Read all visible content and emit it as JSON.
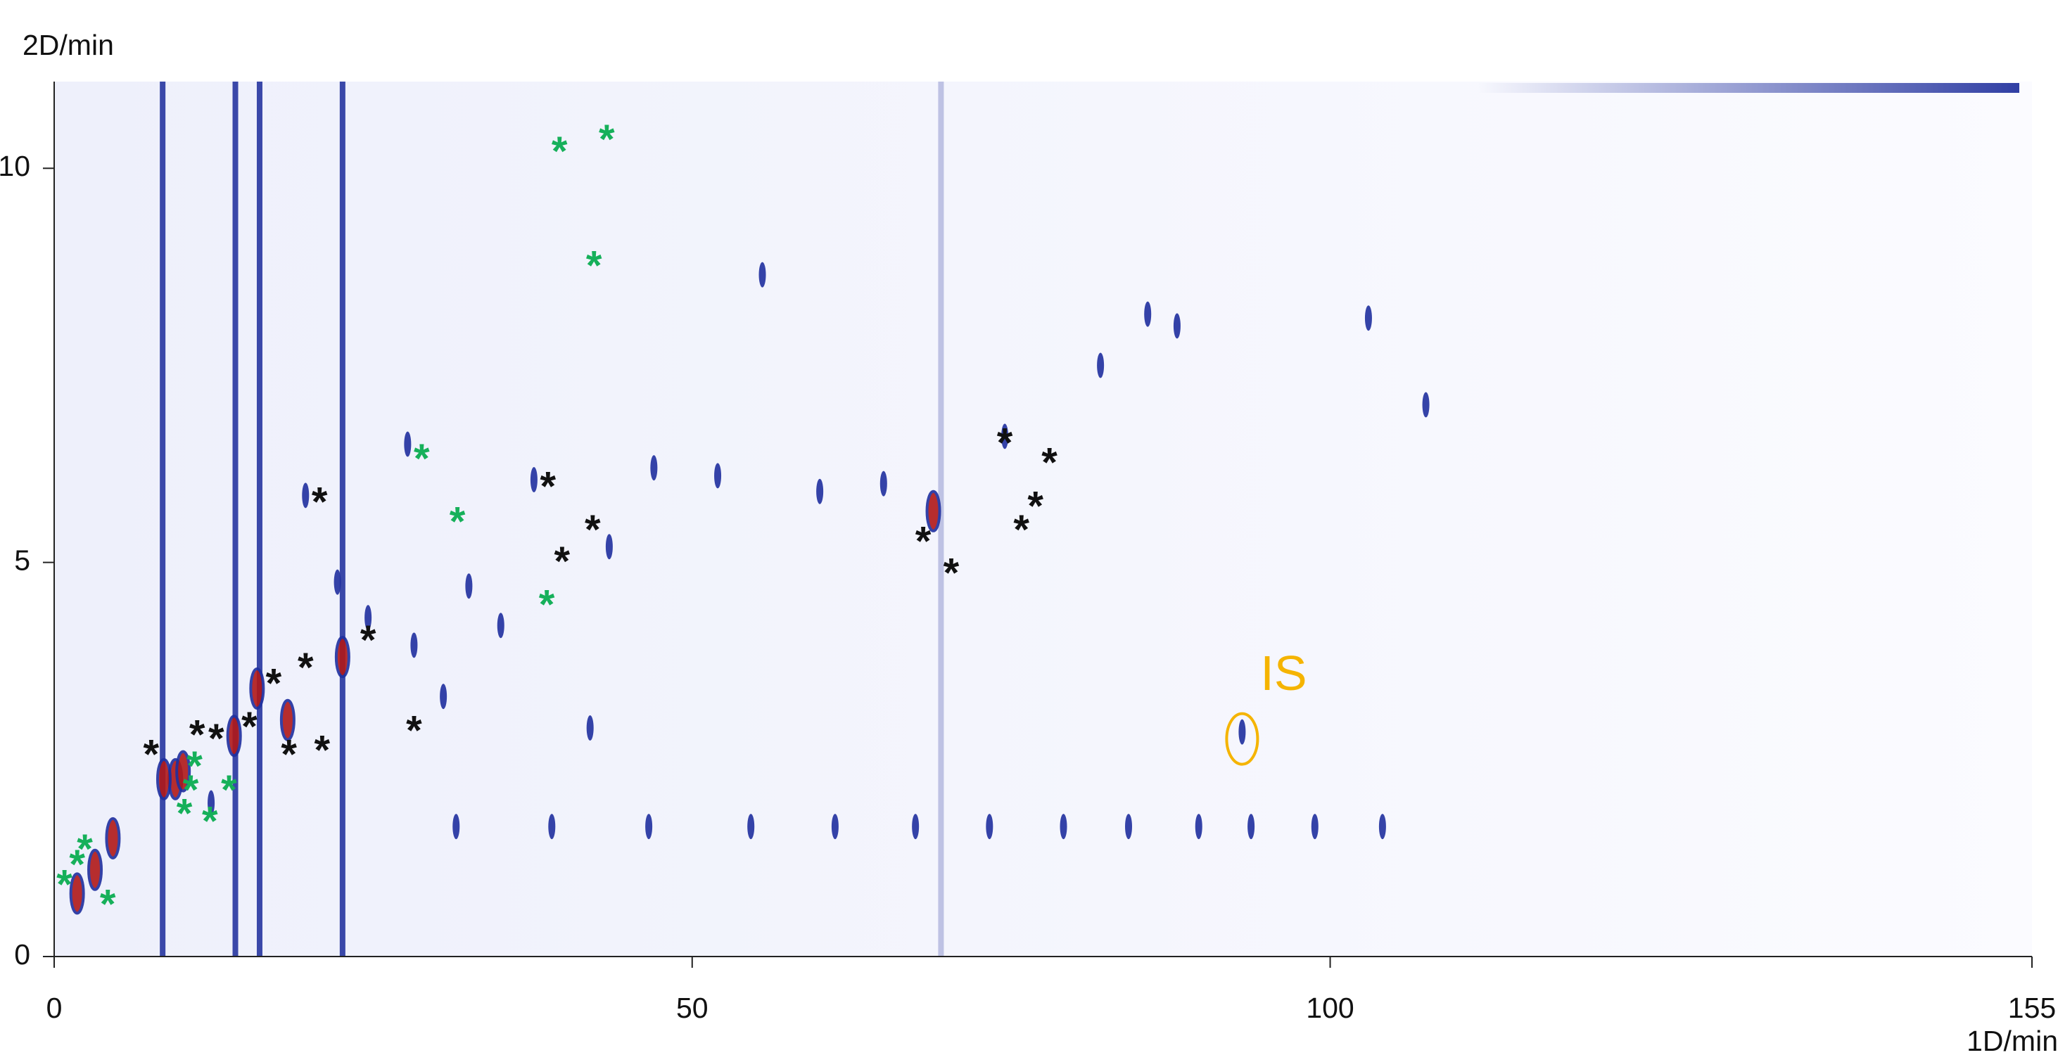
{
  "chart_data": {
    "type": "scatter",
    "x_label": "1D/min",
    "y_label": "2D/min",
    "xlim": [
      0,
      155
    ],
    "xticks": [
      0,
      50,
      100,
      155
    ],
    "ylim": [
      0,
      11.1
    ],
    "yticks": [
      0,
      5,
      10
    ],
    "streaks": {
      "color": "#1a2a9a",
      "x": [
        8.5,
        14.2,
        16.1,
        22.6,
        69.5
      ]
    },
    "series": [
      {
        "color": "#1f2f9f",
        "x": [
          55.5,
          27.7,
          19.7,
          37.6,
          74.5,
          93.1,
          107.5,
          85.7,
          22.2,
          28.2,
          24.6,
          30.5,
          42,
          47,
          52,
          60,
          65,
          82,
          88,
          103,
          32.5,
          35,
          43.5,
          12.3,
          31.5,
          39,
          46.6,
          54.6,
          61.2,
          67.5,
          73.3,
          79.1,
          84.2,
          89.7,
          93.8,
          98.8,
          104.1
        ],
        "y": [
          8.65,
          6.5,
          5.85,
          6.05,
          6.6,
          2.85,
          7,
          8.15,
          4.75,
          3.95,
          4.3,
          3.3,
          2.9,
          6.2,
          6.1,
          5.9,
          6.0,
          7.5,
          8.0,
          8.1,
          4.7,
          4.2,
          5.2,
          1.95,
          1.65,
          1.65,
          1.65,
          1.65,
          1.65,
          1.65,
          1.65,
          1.65,
          1.65,
          1.65,
          1.65,
          1.65,
          1.65
        ]
      },
      {
        "color": "#b01818",
        "x": [
          68.9,
          22.6,
          15.9,
          14.1,
          9.5,
          18.3,
          4.6,
          1.8,
          8.6,
          10.1,
          3.2
        ],
        "y": [
          5.65,
          3.8,
          3.4,
          2.8,
          2.25,
          3.0,
          1.5,
          0.8,
          2.25,
          2.35,
          1.1
        ]
      }
    ],
    "markers": [
      {
        "text": "*",
        "color": "#111111",
        "x": [
          74.5,
          78,
          76.9,
          75.8,
          68.1,
          70.3,
          38.7,
          42.2,
          39.8,
          20.8,
          24.6,
          19.7,
          17.2,
          15.3,
          12.7,
          11.2,
          7.6,
          18.4,
          21,
          28.2
        ],
        "y": [
          6.6,
          6.35,
          5.8,
          5.5,
          5.35,
          4.95,
          6.05,
          5.5,
          5.1,
          5.85,
          4.1,
          3.75,
          3.55,
          3.0,
          2.85,
          2.9,
          2.65,
          2.65,
          2.7,
          2.95
        ]
      },
      {
        "text": "*",
        "color": "#16b05a",
        "x": [
          39.6,
          43.3,
          42.3,
          28.8,
          31.6,
          38.6,
          11,
          10.7,
          13.7,
          10.2,
          12.2,
          2.4,
          1.8,
          0.8,
          4.2
        ],
        "y": [
          10.3,
          10.45,
          8.85,
          6.4,
          5.6,
          4.55,
          2.5,
          2.2,
          2.2,
          1.9,
          1.8,
          1.45,
          1.25,
          1.0,
          0.75
        ]
      }
    ],
    "annotation": {
      "text": "IS",
      "color": "#f5b400",
      "x": 93.1,
      "y": 2.85
    }
  }
}
